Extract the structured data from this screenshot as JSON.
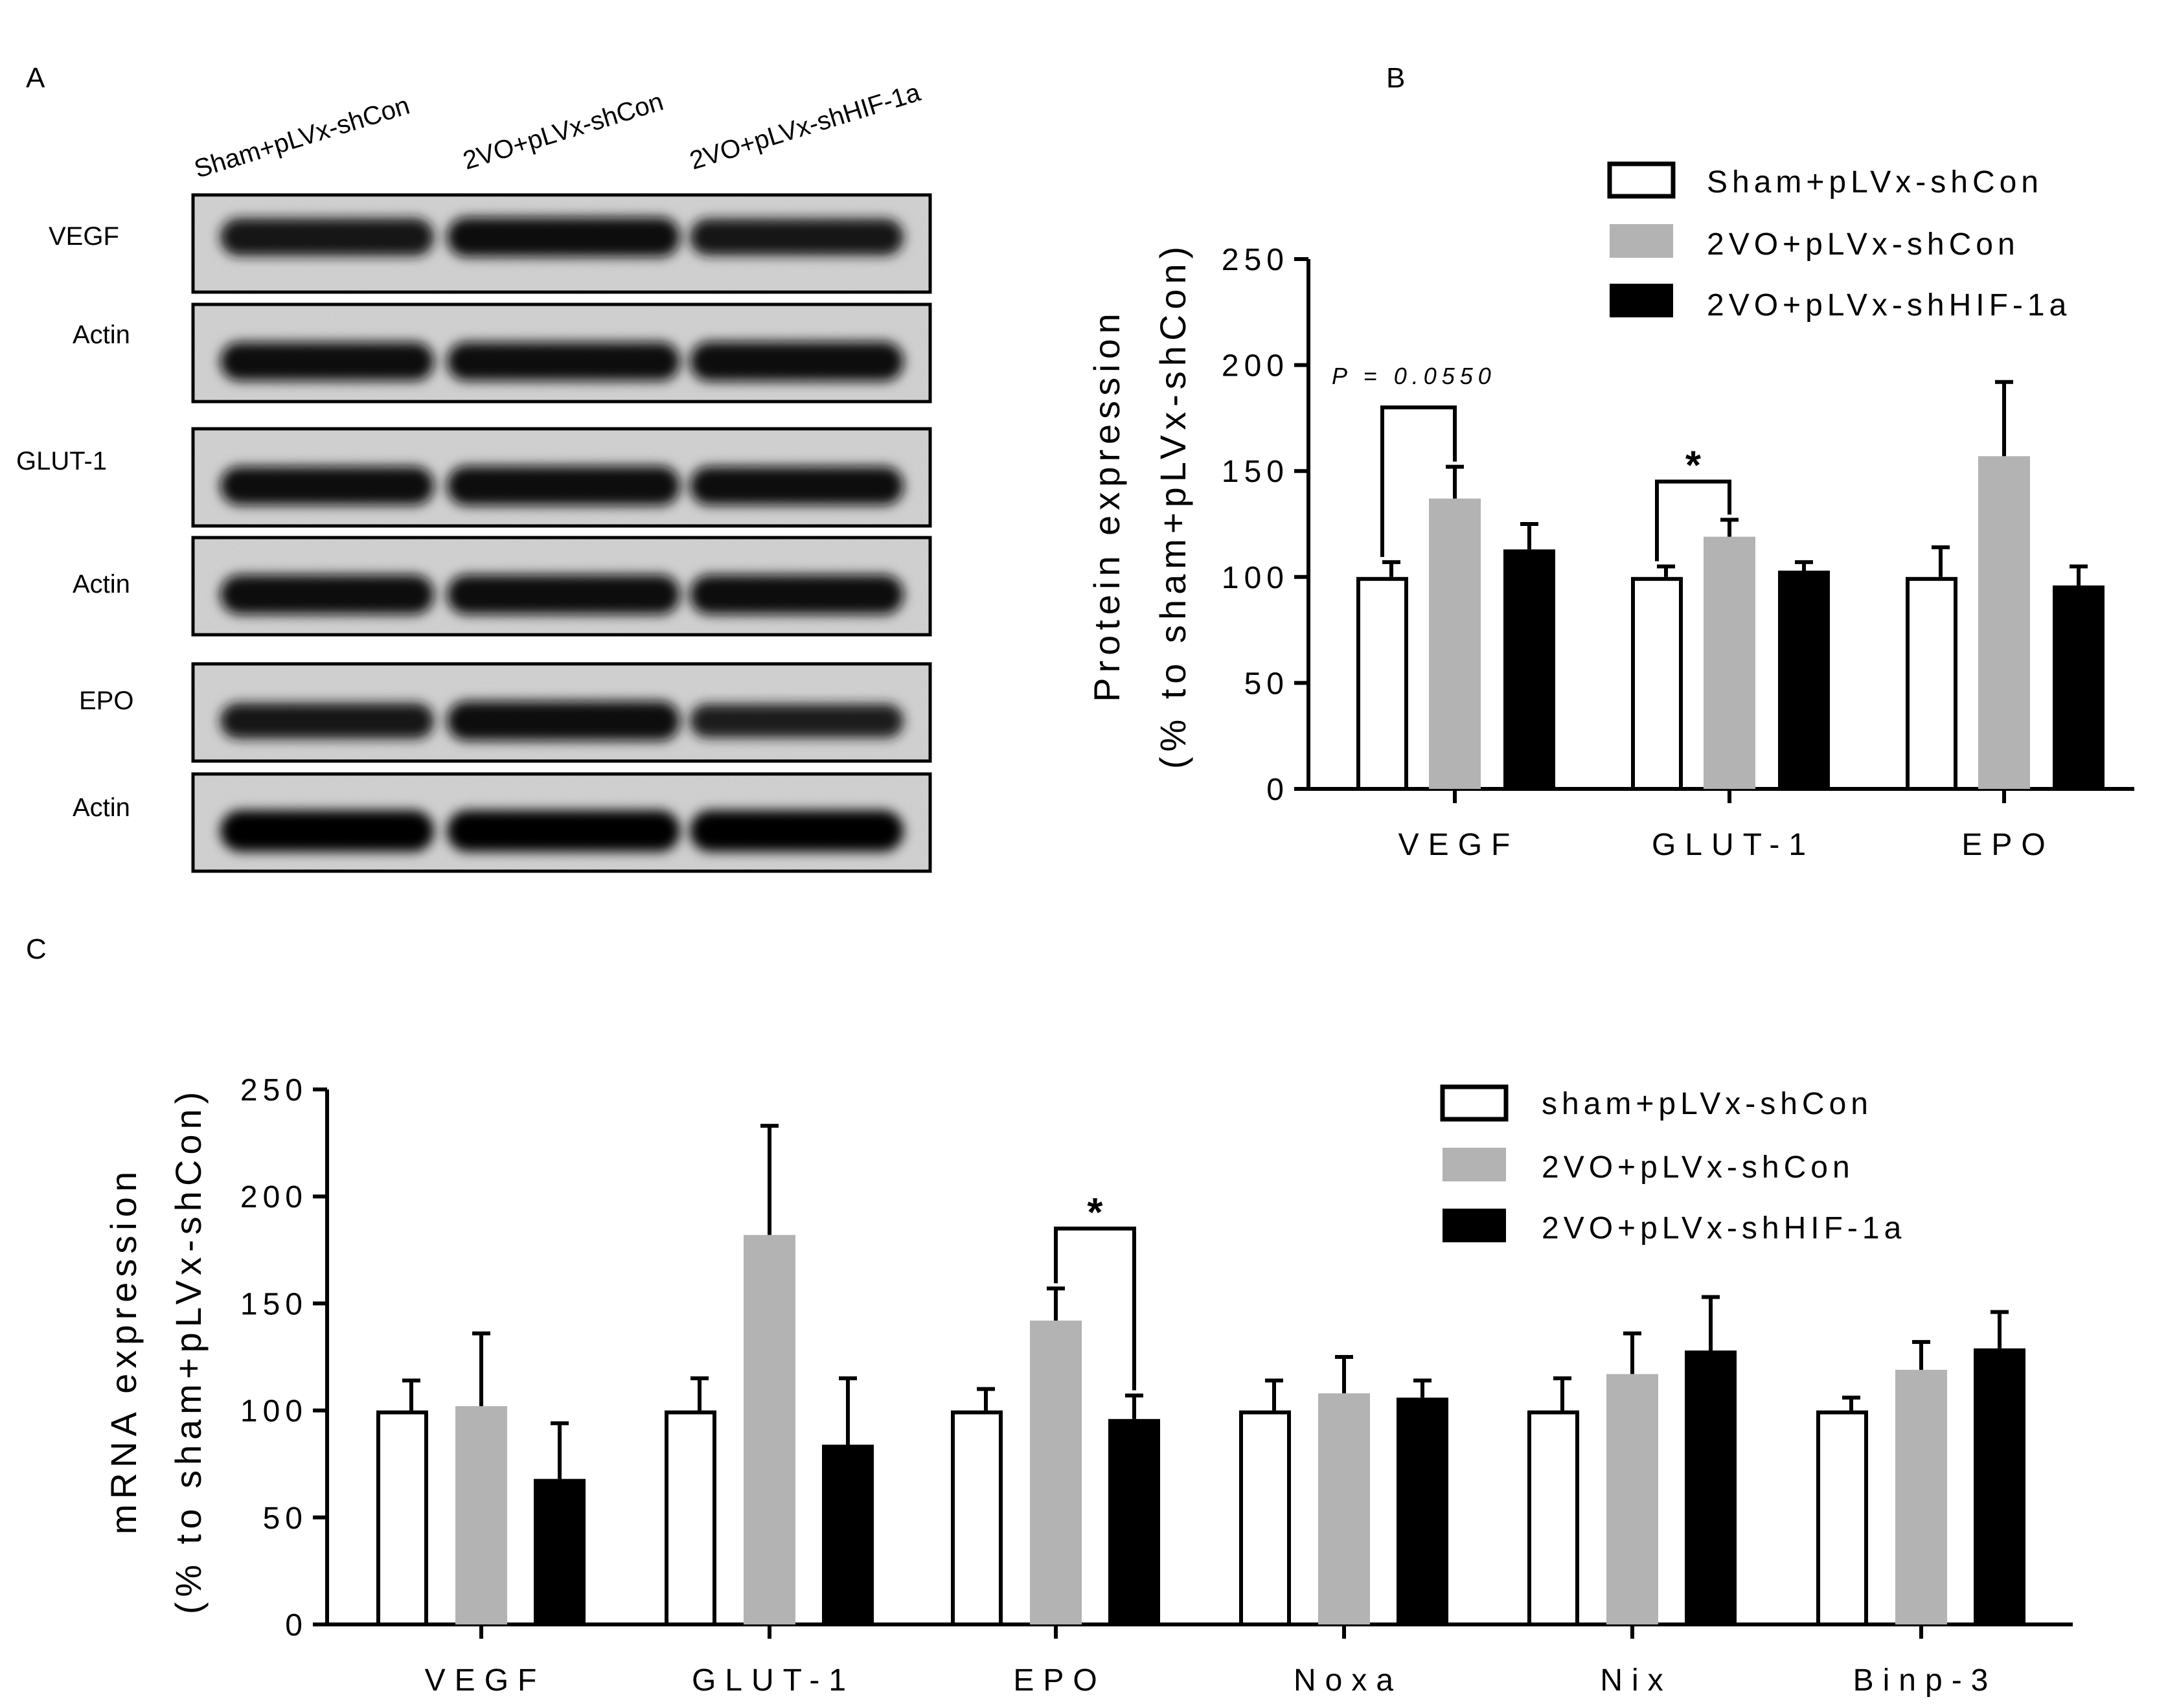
{
  "panels": {
    "a": "A",
    "b": "B",
    "c": "C"
  },
  "blot": {
    "lanes": [
      "Sham+pLVx-shCon",
      "2VO+pLVx-shCon",
      "2VO+pLVx-shHIF-1a"
    ],
    "rows": [
      {
        "label": "VEGF",
        "intensity": [
          0.8,
          0.9,
          0.75
        ]
      },
      {
        "label": "Actin",
        "intensity": [
          0.85,
          0.85,
          0.9
        ]
      },
      {
        "label": "GLUT-1",
        "intensity": [
          0.85,
          0.9,
          0.85
        ]
      },
      {
        "label": "Actin",
        "intensity": [
          0.9,
          0.9,
          0.9
        ]
      },
      {
        "label": "EPO",
        "intensity": [
          0.7,
          0.9,
          0.6
        ]
      },
      {
        "label": "Actin",
        "intensity": [
          1.0,
          1.0,
          1.0
        ]
      }
    ]
  },
  "colors": {
    "sham": "#ffffff",
    "vo": "#b3b3b3",
    "shhif": "#000000",
    "axis": "#000000"
  },
  "chart_data": [
    {
      "panel": "B",
      "type": "bar",
      "ylabel": "Protein expression",
      "ylabel2": "(% to sham+pLVx-shCon)",
      "categories": [
        "VEGF",
        "GLUT-1",
        "EPO"
      ],
      "ylim": [
        0,
        250
      ],
      "yticks": [
        "0",
        "50",
        "100",
        "150",
        "200",
        "250"
      ],
      "series": [
        {
          "name": "Sham+pLVx-shCon",
          "key": "sham",
          "values": [
            100,
            100,
            100
          ],
          "errors": [
            7,
            5,
            14
          ]
        },
        {
          "name": "2VO+pLVx-shCon",
          "key": "vo",
          "values": [
            137,
            119,
            157
          ],
          "errors": [
            15,
            8,
            35
          ]
        },
        {
          "name": "2VO+pLVx-shHIF-1a",
          "key": "shhif",
          "values": [
            113,
            103,
            96
          ],
          "errors": [
            12,
            4,
            9
          ]
        }
      ],
      "annotations": [
        {
          "text": "P = 0.0550",
          "category": 0,
          "from": 0,
          "to": 1,
          "level": 180
        },
        {
          "text": "*",
          "category": 1,
          "from": 0,
          "to": 1,
          "level": 145
        }
      ]
    },
    {
      "panel": "C",
      "type": "bar",
      "ylabel": "mRNA expression",
      "ylabel2": "(% to sham+pLVx-shCon)",
      "categories": [
        "VEGF",
        "GLUT-1",
        "EPO",
        "Noxa",
        "Nix",
        "Binp-3"
      ],
      "ylim": [
        0,
        250
      ],
      "yticks": [
        "0",
        "50",
        "100",
        "150",
        "200",
        "250"
      ],
      "series": [
        {
          "name": "sham+pLVx-shCon",
          "key": "sham",
          "values": [
            100,
            100,
            100,
            100,
            100,
            100
          ],
          "errors": [
            14,
            15,
            10,
            14,
            15,
            6
          ]
        },
        {
          "name": "2VO+pLVx-shCon",
          "key": "vo",
          "values": [
            102,
            182,
            142,
            108,
            117,
            119
          ],
          "errors": [
            34,
            51,
            15,
            17,
            19,
            13
          ]
        },
        {
          "name": "2VO+pLVx-shHIF-1a",
          "key": "shhif",
          "values": [
            68,
            84,
            96,
            106,
            128,
            129
          ],
          "errors": [
            26,
            31,
            11,
            8,
            25,
            17
          ]
        }
      ],
      "annotations": [
        {
          "text": "*",
          "category": 2,
          "from": 1,
          "to": 2,
          "level": 185
        }
      ]
    }
  ]
}
